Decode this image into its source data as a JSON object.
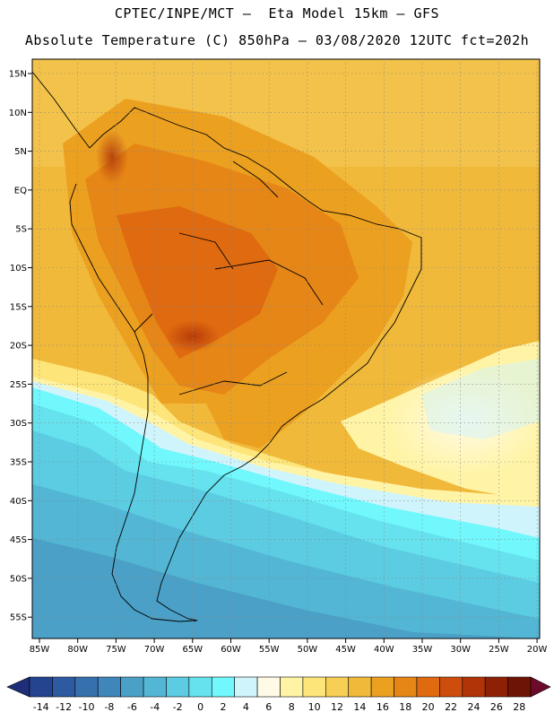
{
  "header": {
    "line1": "CPTEC/INPE/MCT –  Eta Model 15km – GFS",
    "line2": "Absolute Temperature (C) 850hPa – 03/08/2020 12UTC fct=202h"
  },
  "axes": {
    "lat_labels": [
      "15N",
      "10N",
      "5N",
      "EQ",
      "5S",
      "10S",
      "15S",
      "20S",
      "25S",
      "30S",
      "35S",
      "40S",
      "45S",
      "50S",
      "55S"
    ],
    "lon_labels": [
      "85W",
      "80W",
      "75W",
      "70W",
      "65W",
      "60W",
      "55W",
      "50W",
      "45W",
      "40W",
      "35W",
      "30W",
      "25W",
      "20W"
    ]
  },
  "colorbar": {
    "labels": [
      "-14",
      "-12",
      "-10",
      "-8",
      "-6",
      "-4",
      "-2",
      "0",
      "2",
      "4",
      "6",
      "8",
      "10",
      "12",
      "14",
      "16",
      "18",
      "20",
      "22",
      "24",
      "26",
      "28"
    ],
    "colors": [
      "#24448f",
      "#2d5aa0",
      "#3670ad",
      "#3f86ba",
      "#4aa0c6",
      "#52b6d4",
      "#5ccce2",
      "#66e2ee",
      "#70f8fc",
      "#d0f4fc",
      "#fffae6",
      "#fff4a6",
      "#fde57a",
      "#f7cf55",
      "#f1b93a",
      "#eca020",
      "#e68616",
      "#df6a10",
      "#cd4e0c",
      "#b03408",
      "#8e2006",
      "#6e1404"
    ],
    "low_arrow_color": "#1e2e78",
    "high_arrow_color": "#6e0a2a"
  }
}
